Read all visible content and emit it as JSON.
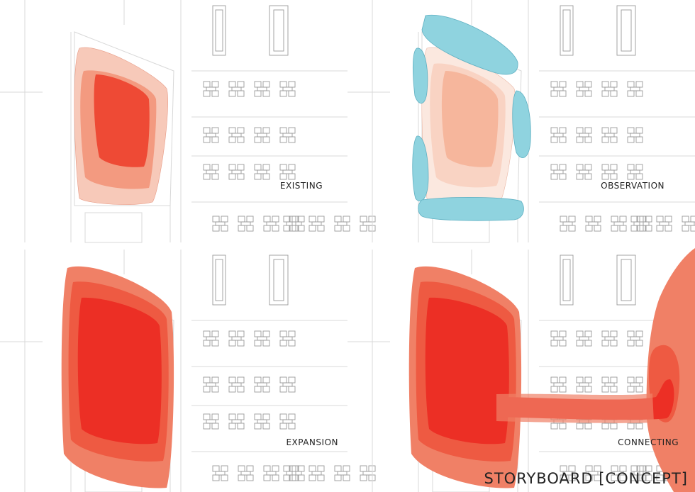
{
  "title": "STORYBOARD [CONCEPT]",
  "panels": [
    {
      "label": "EXISTING"
    },
    {
      "label": "OBSERVATION"
    },
    {
      "label": "EXPANSION"
    },
    {
      "label": "CONNECTING"
    }
  ]
}
